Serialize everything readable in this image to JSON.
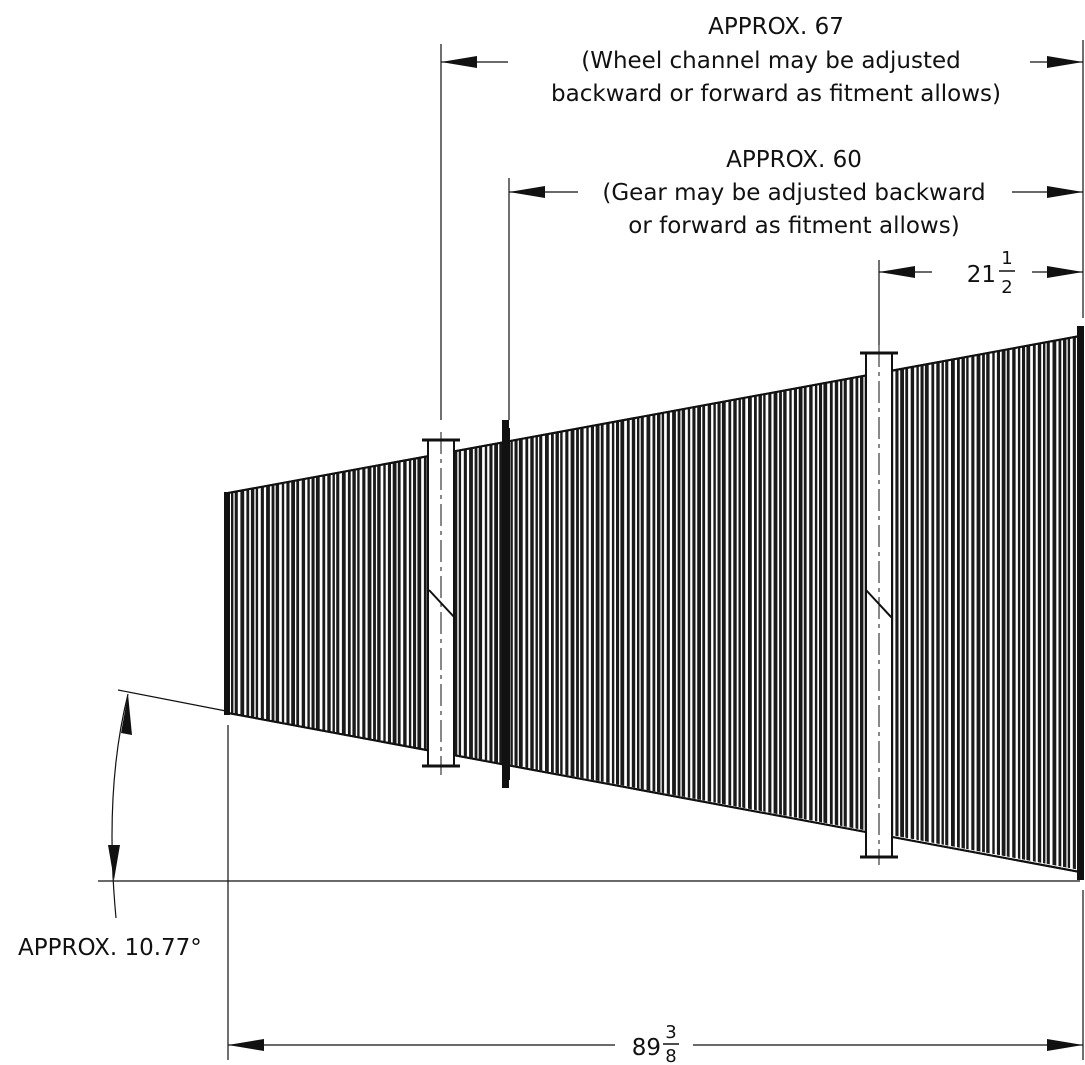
{
  "dimensions": {
    "overall_67": {
      "line1": "APPROX. 67",
      "line2": "(Wheel channel may be adjusted",
      "line3": "backward or forward as fitment allows)"
    },
    "gear_60": {
      "line1": "APPROX. 60",
      "line2": "(Gear may be adjusted  backward",
      "line3": "or forward as fitment allows)"
    },
    "offset": {
      "whole": "21",
      "numerator": "1",
      "denominator": "2"
    },
    "length": {
      "whole": "89",
      "numerator": "3",
      "denominator": "8"
    },
    "angle": {
      "label": "APPROX. 10.77°"
    }
  },
  "colors": {
    "ink": "#111111",
    "conveyor": "#1a1a1a",
    "background": "#ffffff"
  }
}
